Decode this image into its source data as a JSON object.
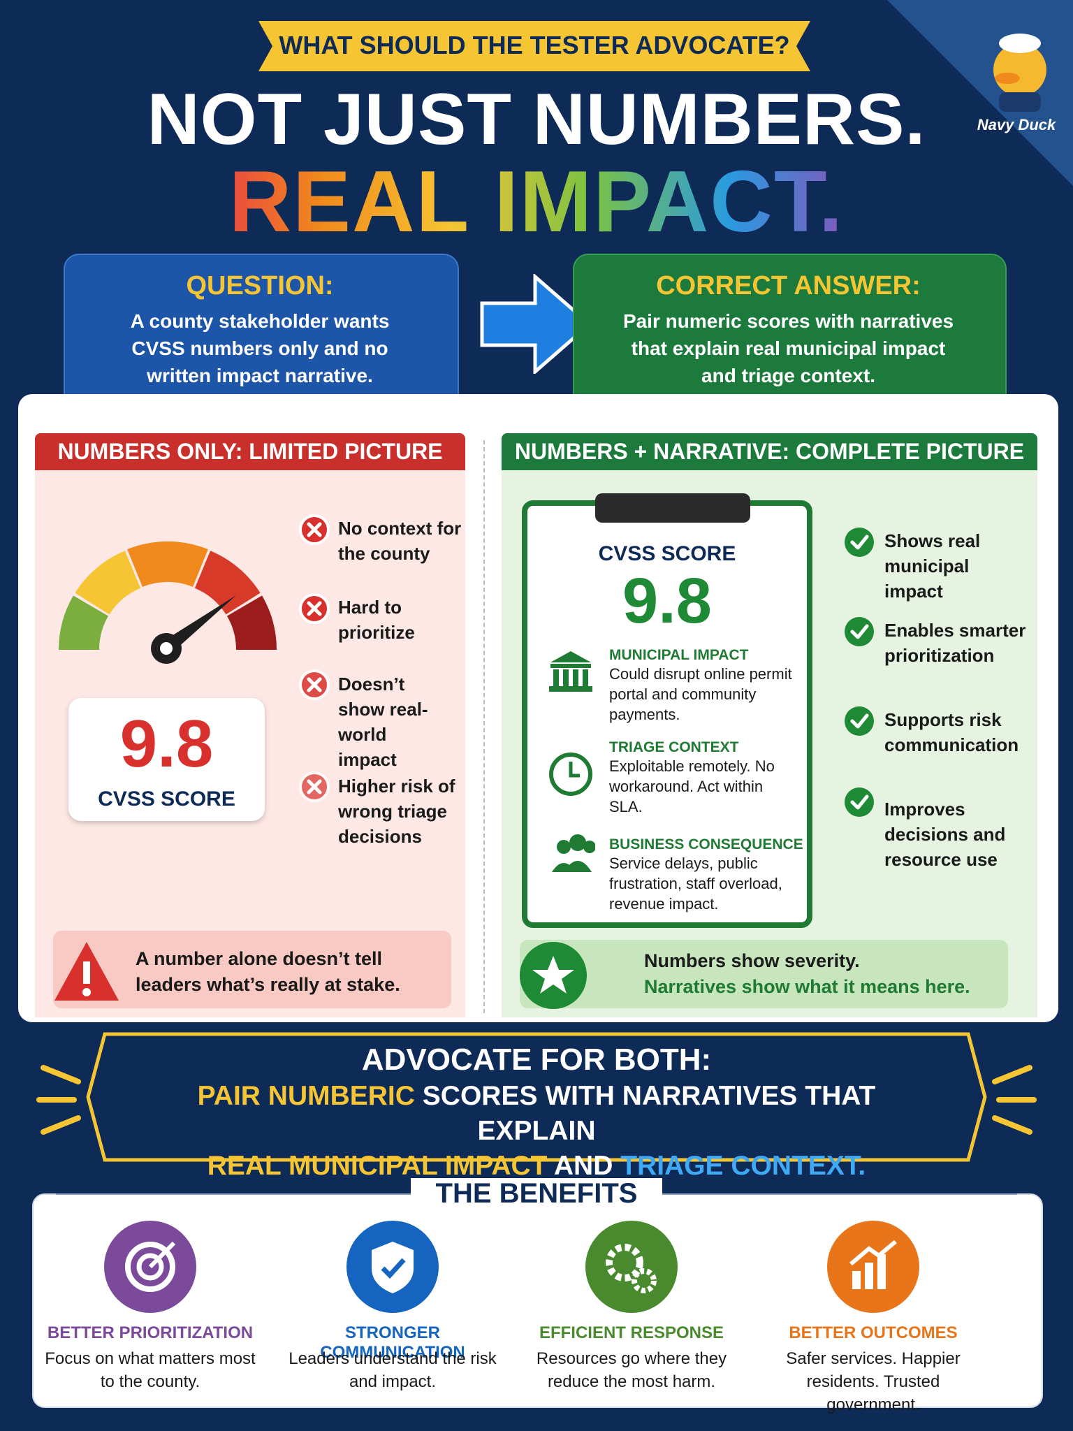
{
  "banner": "WHAT SHOULD THE TESTER ADVOCATE?",
  "headline": {
    "line1": "NOT JUST NUMBERS.",
    "line2": "REAL IMPACT."
  },
  "badge": "Navy Duck",
  "question": {
    "title": "QUESTION:",
    "text": "A county stakeholder wants CVSS numbers only and no written impact narrative."
  },
  "answer": {
    "title": "CORRECT ANSWER:",
    "text": "Pair numeric scores with narratives that explain real municipal impact and triage context."
  },
  "numbers_only": {
    "header": "NUMBERS ONLY: LIMITED PICTURE",
    "score": "9.8",
    "score_label": "CVSS SCORE",
    "points": [
      "No context for the county",
      "Hard to prioritize",
      "Doesn’t show real-world impact",
      "Higher risk of wrong triage decisions"
    ],
    "warning": "A number alone doesn’t tell leaders what’s really at stake."
  },
  "numbers_narrative": {
    "header": "NUMBERS + NARRATIVE: COMPLETE PICTURE",
    "card": {
      "score_label": "CVSS SCORE",
      "score": "9.8",
      "sections": [
        {
          "title": "MUNICIPAL IMPACT",
          "text": "Could disrupt online permit portal and community payments."
        },
        {
          "title": "TRIAGE CONTEXT",
          "text": "Exploitable remotely. No workaround. Act within SLA."
        },
        {
          "title": "BUSINESS CONSEQUENCE",
          "text": "Service delays, public frustration, staff overload, revenue impact."
        }
      ]
    },
    "points": [
      "Shows real municipal impact",
      "Enables smarter prioritization",
      "Supports risk communication",
      "Improves decisions and resource use"
    ],
    "note": {
      "line1": "Numbers show severity.",
      "line2": "Narratives show what it means here."
    }
  },
  "advocate": {
    "title": "ADVOCATE FOR BOTH:",
    "segments": [
      {
        "text": "PAIR NUMBERIC",
        "color": "#f5c533"
      },
      {
        "text": "SCORES WITH NARRATIVES THAT EXPLAIN",
        "color": "#ffffff"
      },
      {
        "text": "REAL MUNICIPAL IMPACT",
        "color": "#f5c533"
      },
      {
        "text": "AND",
        "color": "#ffffff"
      },
      {
        "text": "TRIAGE CONTEXT.",
        "color": "#3fa9f5"
      }
    ]
  },
  "benefits": {
    "title": "THE BENEFITS",
    "items": [
      {
        "title": "BETTER PRIORITIZATION",
        "text": "Focus on what matters most to the county.",
        "color": "#7b4a9a"
      },
      {
        "title": "STRONGER COMMUNICATION",
        "text": "Leaders understand the risk and impact.",
        "color": "#1565c0"
      },
      {
        "title": "EFFICIENT RESPONSE",
        "text": "Resources go where they reduce the most harm.",
        "color": "#4a8a2e"
      },
      {
        "title": "BETTER OUTCOMES",
        "text": "Safer services. Happier residents. Trusted government.",
        "color": "#e8751a"
      }
    ]
  }
}
